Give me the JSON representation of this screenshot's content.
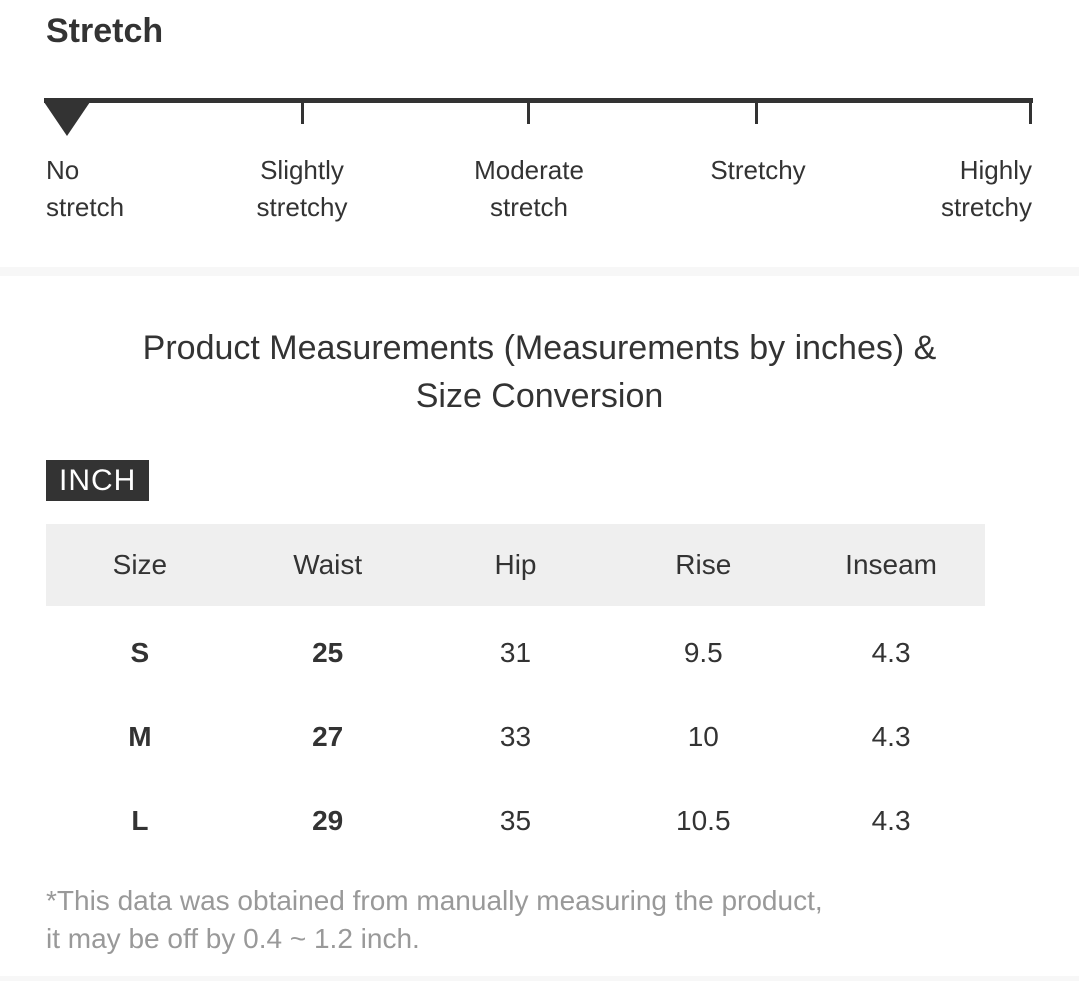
{
  "stretch_section": {
    "heading": "Stretch",
    "scale": {
      "labels": [
        "No stretch",
        "Slightly stretchy",
        "Moderate stretch",
        "Stretchy",
        "Highly stretchy"
      ],
      "selected_label": "No stretch",
      "selected_index": 0
    }
  },
  "measurements_section": {
    "title": "Product Measurements (Measurements by inches) & Size Conversion",
    "unit_badge": "INCH",
    "table": {
      "columns": [
        "Size",
        "Waist",
        "Hip",
        "Rise",
        "Inseam"
      ],
      "rows": [
        [
          "S",
          "25",
          "31",
          "9.5",
          "4.3"
        ],
        [
          "M",
          "27",
          "33",
          "10",
          "4.3"
        ],
        [
          "L",
          "29",
          "35",
          "10.5",
          "4.3"
        ]
      ]
    },
    "footnote": "*This data was obtained from manually measuring the product,\n it may be off by 0.4 ~ 1.2 inch."
  },
  "colors": {
    "text": "#333333",
    "footnote_text": "#999999",
    "badge_background": "#333333",
    "badge_text": "#ffffff",
    "table_header_background": "#efefef",
    "divider": "#f7f7f7",
    "scale_indicator": "#333333"
  }
}
